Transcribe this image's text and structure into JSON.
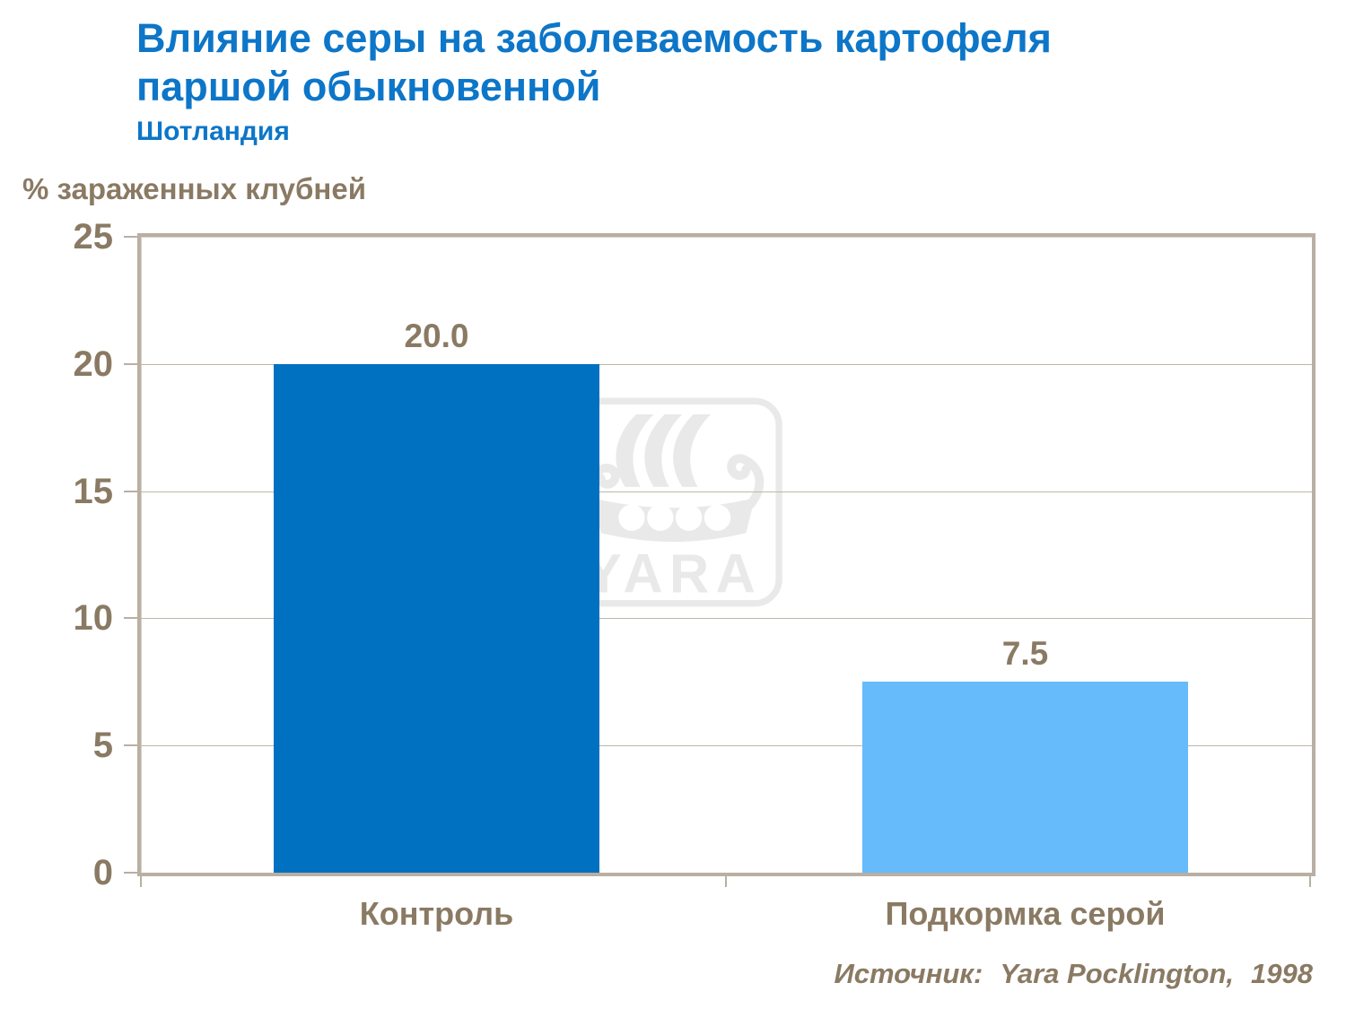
{
  "title": {
    "line1": "Влияние серы на заболеваемость картофеля",
    "line2": "паршой обыкновенной",
    "subtitle": "Шотландия"
  },
  "chart_data": {
    "type": "bar",
    "title": "Влияние серы на заболеваемость картофеля паршой обыкновенной",
    "subtitle": "Шотландия",
    "ylabel": "% зараженных клубней",
    "xlabel": "",
    "categories": [
      "Контроль",
      "Подкормка серой"
    ],
    "values": [
      20.0,
      7.5
    ],
    "value_labels": [
      "20.0",
      "7.5"
    ],
    "ylim": [
      0,
      25
    ],
    "yticks": [
      0,
      5,
      10,
      15,
      20,
      25
    ],
    "ytick_labels": [
      "0",
      "5",
      "10",
      "15",
      "20",
      "25"
    ],
    "bar_colors": [
      "#0070C0",
      "#66BBFA"
    ],
    "grid": "horizontal",
    "legend": "none",
    "source": "Источник: Yara Pocklington, 1998"
  },
  "watermark": {
    "text": "YARA"
  },
  "source": {
    "prefix": "Источник:",
    "name": "Yara Pocklington,",
    "year": "1998"
  },
  "colors": {
    "title_blue": "#0D76C8",
    "bar_control": "#0070C0",
    "bar_sulphur": "#66BBFA",
    "text_brown": "#8A7A63",
    "axis_border": "#B9AFA3",
    "gridline": "#BFB6A9",
    "watermark_gray": "#E9E9E9"
  }
}
